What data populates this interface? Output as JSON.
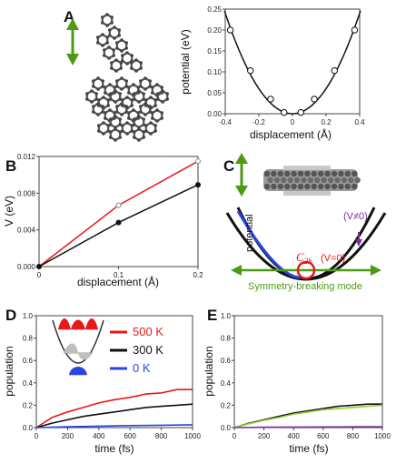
{
  "panels": [
    {
      "id": "A",
      "label": "A"
    },
    {
      "id": "B",
      "label": "B"
    },
    {
      "id": "C",
      "label": "C"
    },
    {
      "id": "D",
      "label": "D"
    },
    {
      "id": "E",
      "label": "E"
    }
  ],
  "annotations": {
    "c_potential": "potential",
    "c_vneq": "(V≠0)",
    "c_c2h_main": "C",
    "c_c2h_sub": "2h",
    "c_veq": "(V=0)",
    "c_mode": "Symmetry-breaking mode"
  },
  "colors": {
    "red": "#e8181a",
    "black": "#111111",
    "blue": "#2b45e0",
    "green": "#4e9a13",
    "lime": "#9acd32",
    "purple": "#7a2e9e"
  },
  "chart_data": [
    {
      "id": "A",
      "type": "scatter",
      "xlabel": "displacement (Å)",
      "ylabel": "potential (eV)",
      "xlim": [
        -0.4,
        0.4
      ],
      "ylim": [
        0,
        0.25
      ],
      "xticks": [
        "-0.4",
        "-0.2",
        "0",
        "0.2",
        "0.4"
      ],
      "yticks": [
        "0.00",
        "0.05",
        "0.10",
        "0.15",
        "0.20",
        "0.25"
      ],
      "points": [
        {
          "x": -0.37,
          "y": 0.2
        },
        {
          "x": -0.25,
          "y": 0.103
        },
        {
          "x": -0.13,
          "y": 0.035
        },
        {
          "x": -0.05,
          "y": 0.003
        },
        {
          "x": 0.05,
          "y": 0.003
        },
        {
          "x": 0.13,
          "y": 0.035
        },
        {
          "x": 0.25,
          "y": 0.103
        },
        {
          "x": 0.37,
          "y": 0.2
        }
      ],
      "fit": {
        "type": "parabola",
        "a": 1.5
      }
    },
    {
      "id": "B",
      "type": "line",
      "xlabel": "displacement (Å)",
      "ylabel": "V (eV)",
      "xlim": [
        0,
        0.2
      ],
      "ylim": [
        0,
        0.014
      ],
      "xticks": [
        "0",
        "0.1",
        "0.2"
      ],
      "yticks": [
        "0.000",
        "0.004",
        "0.008",
        "0.012"
      ],
      "series": [
        {
          "color": "#e8181a",
          "marker": "open",
          "x": [
            0,
            0.1,
            0.2
          ],
          "y": [
            0,
            0.0078,
            0.0134
          ]
        },
        {
          "color": "#111111",
          "marker": "filled",
          "x": [
            0,
            0.1,
            0.2
          ],
          "y": [
            0,
            0.0056,
            0.0104
          ]
        }
      ]
    },
    {
      "id": "D",
      "type": "line",
      "xlabel": "time (fs)",
      "ylabel": "population",
      "xlim": [
        0,
        1000
      ],
      "ylim": [
        0,
        1
      ],
      "xticks": [
        "0",
        "200",
        "400",
        "600",
        "800",
        "1000"
      ],
      "yticks": [
        "0.0",
        "0.2",
        "0.4",
        "0.6",
        "0.8",
        "1.0"
      ],
      "series": [
        {
          "name": "500 K",
          "color": "#e8181a",
          "x": [
            0,
            100,
            200,
            300,
            400,
            500,
            600,
            700,
            800,
            900,
            1000
          ],
          "y": [
            0,
            0.09,
            0.14,
            0.18,
            0.22,
            0.25,
            0.27,
            0.3,
            0.31,
            0.34,
            0.34
          ]
        },
        {
          "name": "300 K",
          "color": "#111111",
          "x": [
            0,
            100,
            200,
            300,
            400,
            500,
            600,
            700,
            800,
            900,
            1000
          ],
          "y": [
            0,
            0.04,
            0.07,
            0.1,
            0.12,
            0.14,
            0.16,
            0.18,
            0.19,
            0.2,
            0.21
          ]
        },
        {
          "name": "0 K",
          "color": "#2b45e0",
          "x": [
            0,
            200,
            400,
            600,
            800,
            1000
          ],
          "y": [
            0,
            0.008,
            0.013,
            0.018,
            0.021,
            0.025
          ]
        }
      ]
    },
    {
      "id": "E",
      "type": "line",
      "xlabel": "time (fs)",
      "ylabel": "population",
      "xlim": [
        0,
        1000
      ],
      "ylim": [
        0,
        1
      ],
      "xticks": [
        "0",
        "200",
        "400",
        "600",
        "800",
        "1000"
      ],
      "yticks": [
        "0.0",
        "0.2",
        "0.4",
        "0.6",
        "0.8",
        "1.0"
      ],
      "series": [
        {
          "color": "#111111",
          "x": [
            0,
            100,
            200,
            300,
            400,
            500,
            600,
            700,
            800,
            900,
            1000
          ],
          "y": [
            0,
            0.04,
            0.07,
            0.1,
            0.13,
            0.15,
            0.17,
            0.19,
            0.2,
            0.21,
            0.21
          ]
        },
        {
          "color": "#9acd32",
          "x": [
            0,
            100,
            200,
            300,
            400,
            500,
            600,
            700,
            800,
            900,
            1000
          ],
          "y": [
            0,
            0.035,
            0.065,
            0.09,
            0.12,
            0.14,
            0.16,
            0.17,
            0.18,
            0.19,
            0.2
          ]
        },
        {
          "color": "#7a2e9e",
          "x": [
            0,
            200,
            400,
            600,
            800,
            1000
          ],
          "y": [
            0,
            0.003,
            0.005,
            0.006,
            0.007,
            0.008
          ]
        }
      ]
    }
  ]
}
